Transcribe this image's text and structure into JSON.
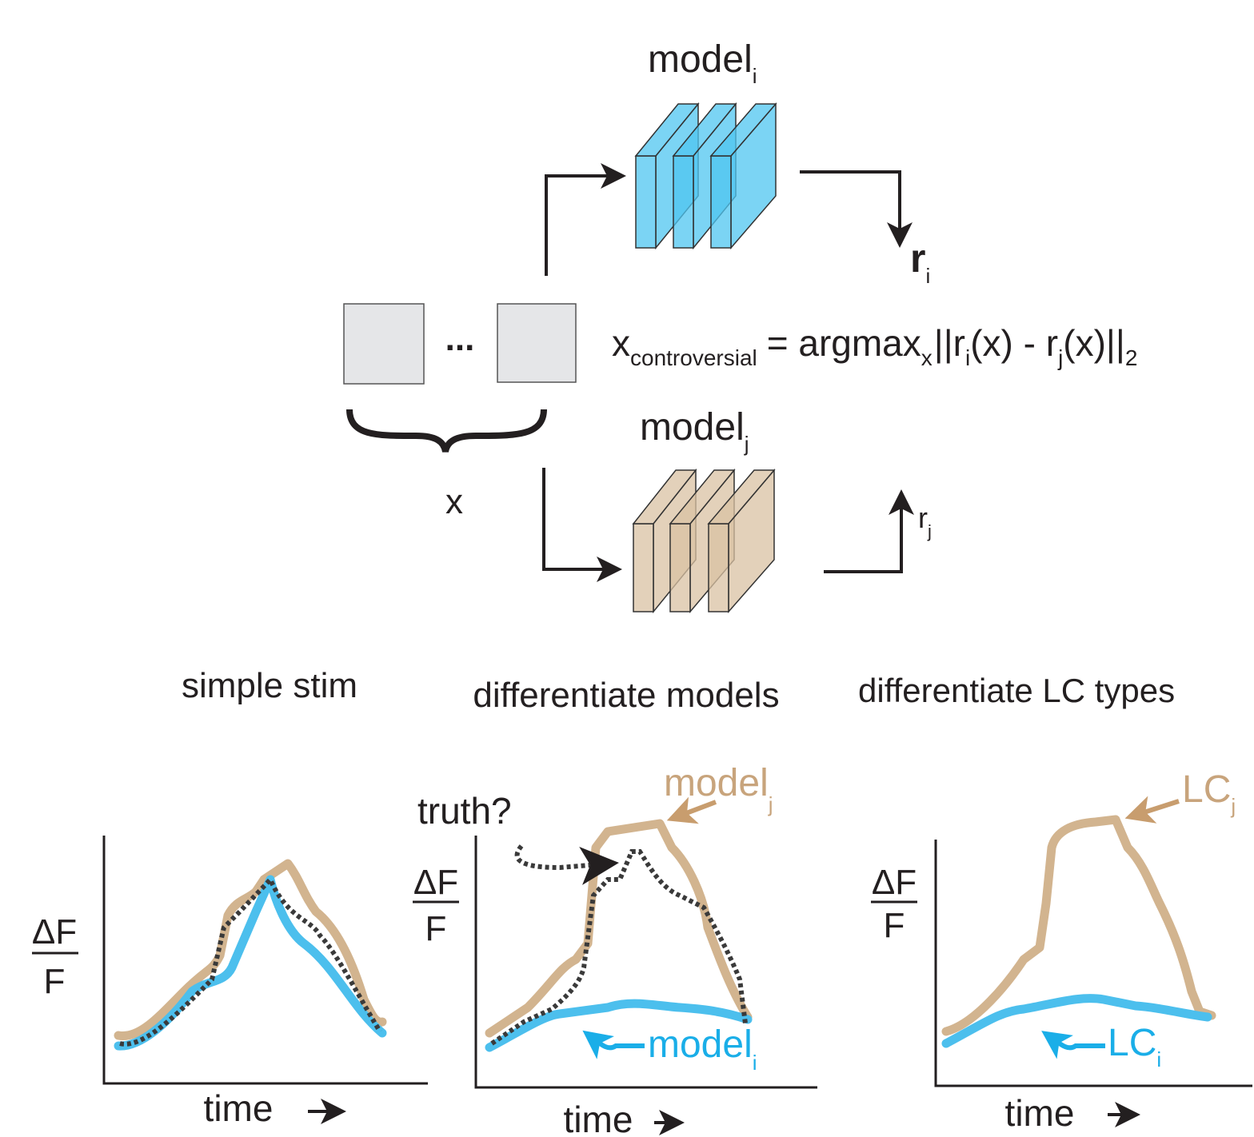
{
  "top": {
    "model_i": {
      "label": "model",
      "sub": "i"
    },
    "r_i": {
      "label": "r",
      "sub": "i"
    },
    "ellipsis": "...",
    "input_label": "x",
    "equation": [
      "x",
      "controversial",
      "= argmax",
      "x",
      "||r",
      "i",
      "(x) - r",
      "j",
      "(x)||",
      "2"
    ],
    "model_j": {
      "label": "model",
      "sub": "j"
    },
    "r_j": {
      "label": "r",
      "sub": "j"
    }
  },
  "panels": [
    {
      "title": "simple stim",
      "y_label": {
        "numerator": "ΔF",
        "denominator": "F"
      },
      "x_label": "time"
    },
    {
      "title": "differentiate models",
      "y_label": {
        "numerator": "ΔF",
        "denominator": "F"
      },
      "x_label": "time",
      "annotation": "truth?",
      "curve_labels": [
        {
          "label": "model",
          "sub": "j"
        },
        {
          "label": "model",
          "sub": "i"
        }
      ]
    },
    {
      "title": "differentiate LC types",
      "y_label": {
        "numerator": "ΔF",
        "denominator": "F"
      },
      "x_label": "time",
      "curve_labels": [
        {
          "label": "LC",
          "sub": "j"
        },
        {
          "label": "LC",
          "sub": "i"
        }
      ]
    }
  ]
}
